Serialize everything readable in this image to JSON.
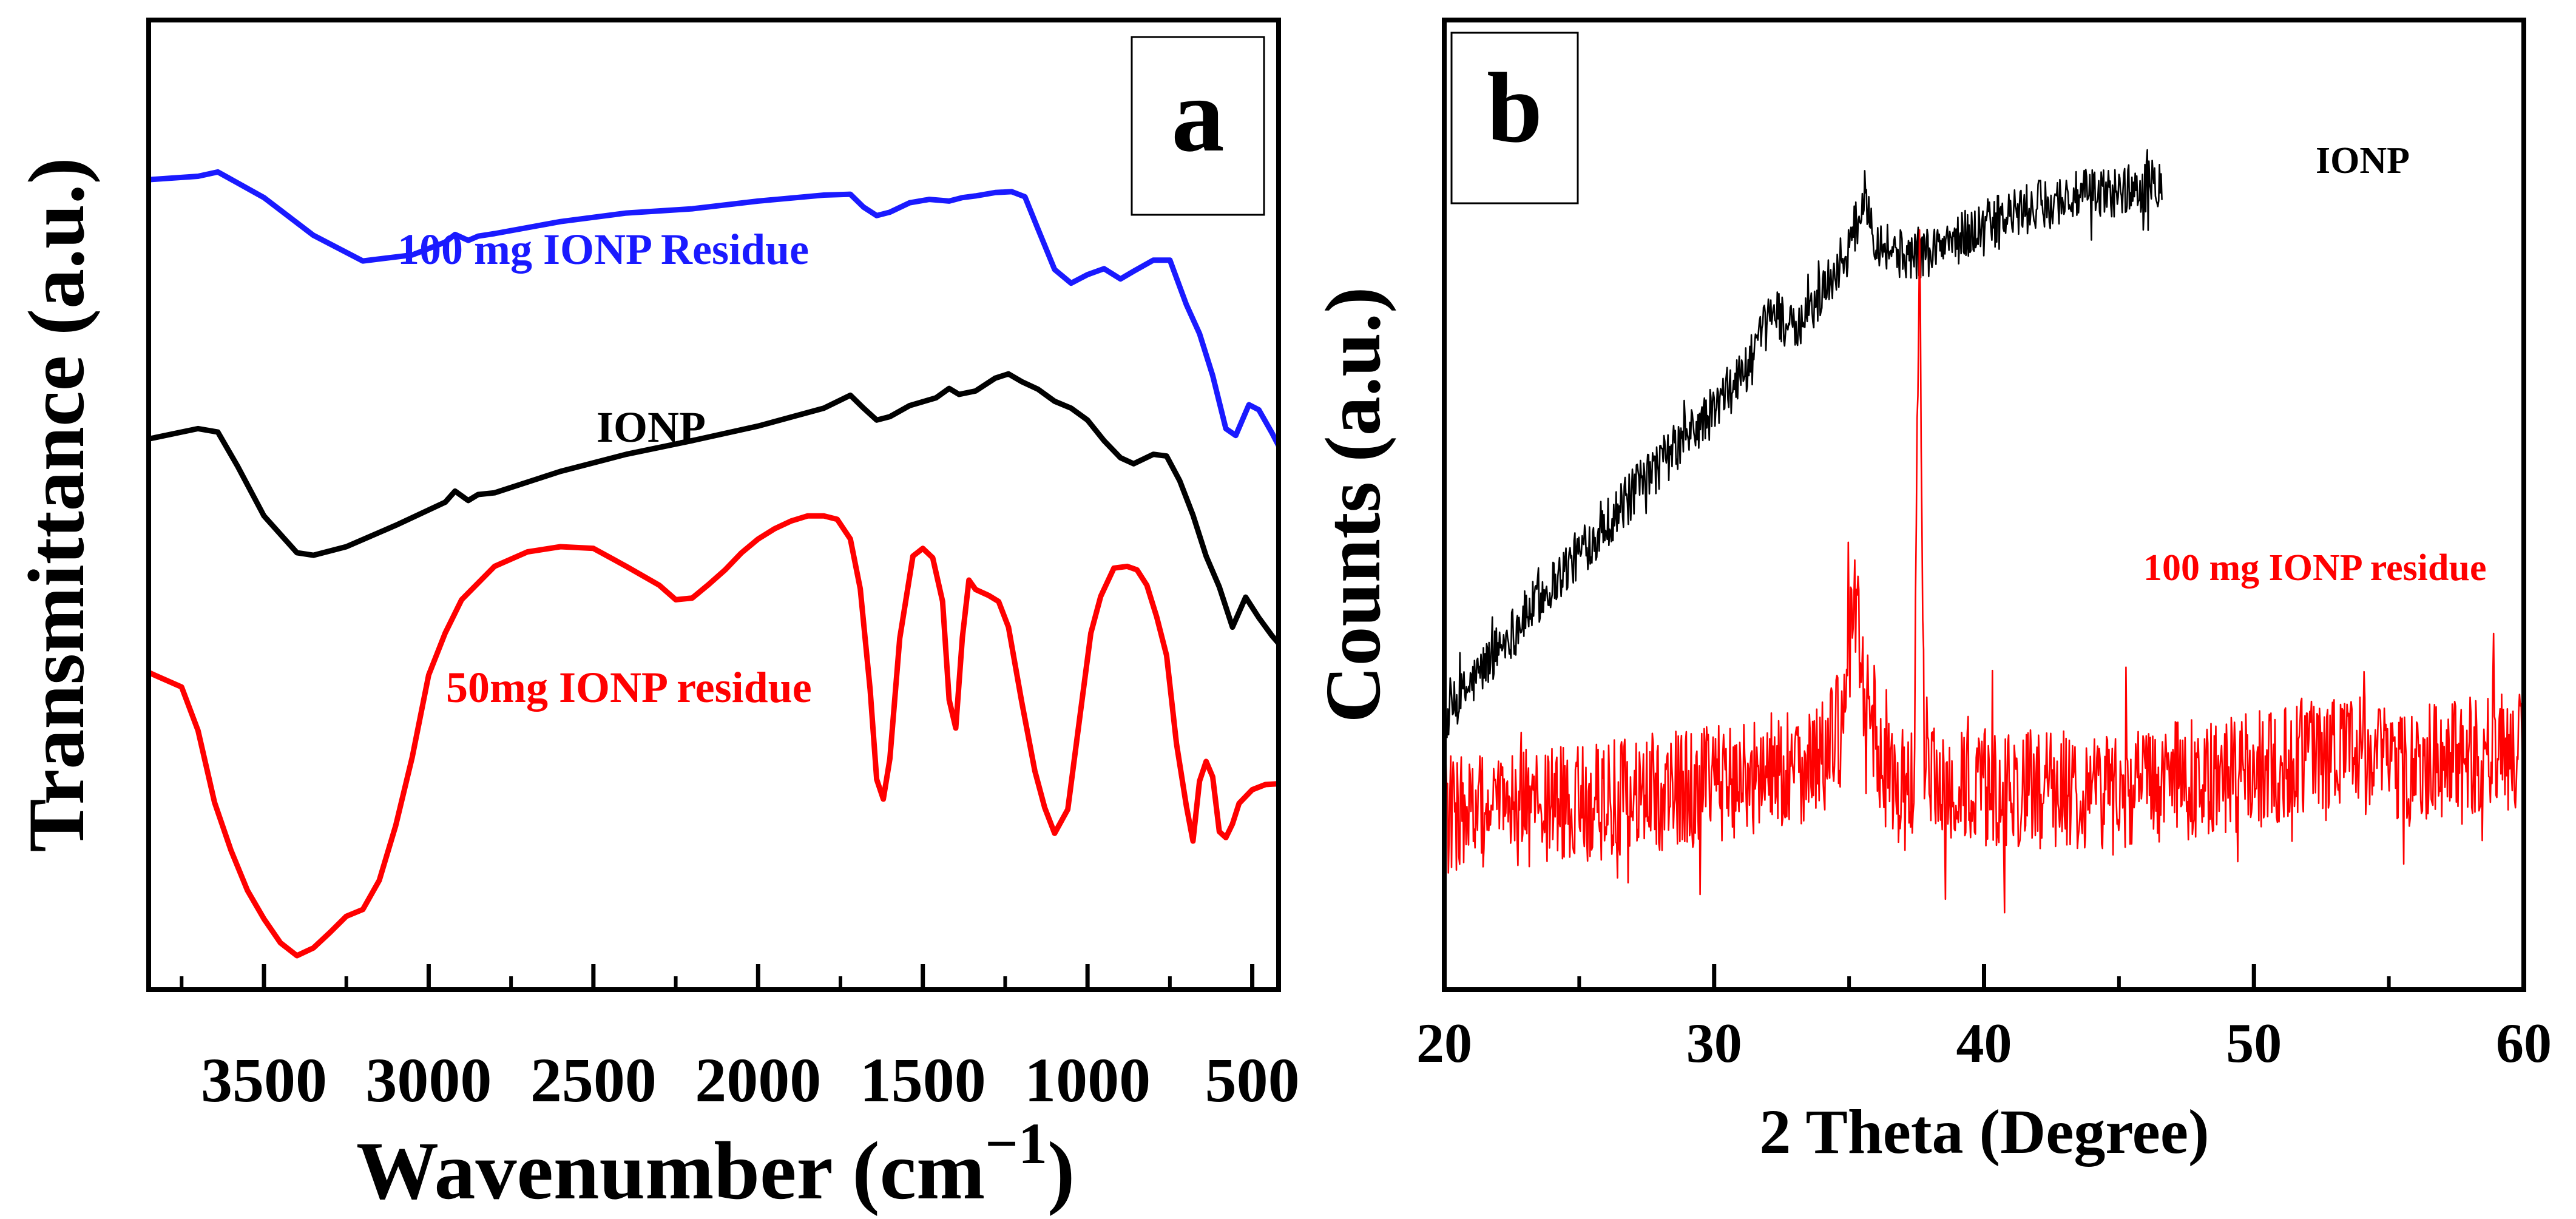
{
  "colors": {
    "blue": "#1a1aff",
    "black": "#000000",
    "red": "#ff0000"
  },
  "chart_data": [
    {
      "type": "line",
      "panel_label": "a",
      "xlabel_main": "Wavenumber (cm",
      "xlabel_sup": "−1",
      "xlabel_close": ")",
      "ylabel": "Transmittance (a.u.)",
      "xlim": [
        3850,
        420
      ],
      "xaxis_reversed": true,
      "ylim": [
        0,
        100
      ],
      "yticks_shown": false,
      "xticks": [
        3500,
        3000,
        2500,
        2000,
        1500,
        1000,
        500
      ],
      "xticklabels": [
        "3500",
        "3000",
        "2500",
        "2000",
        "1500",
        "1000",
        "500"
      ],
      "series": [
        {
          "name": "100 mg IONP Residue",
          "color": "#1a1aff",
          "x": [
            3850,
            3700,
            3640,
            3500,
            3350,
            3200,
            3050,
            2950,
            2920,
            2880,
            2850,
            2800,
            2600,
            2400,
            2200,
            2000,
            1800,
            1720,
            1680,
            1640,
            1600,
            1540,
            1480,
            1420,
            1380,
            1340,
            1280,
            1230,
            1190,
            1150,
            1100,
            1050,
            1000,
            950,
            900,
            860,
            800,
            750,
            700,
            660,
            620,
            580,
            550,
            510,
            480,
            440,
            420
          ],
          "y": [
            90.7,
            91.1,
            91.6,
            88.6,
            84.2,
            81.2,
            81.9,
            83.4,
            84.3,
            83.6,
            84.1,
            84.4,
            85.8,
            86.8,
            87.3,
            88.2,
            88.9,
            89.0,
            87.5,
            86.5,
            86.9,
            88.0,
            88.4,
            88.2,
            88.6,
            88.8,
            89.2,
            89.3,
            88.7,
            84.9,
            80.2,
            78.6,
            79.6,
            80.3,
            79.1,
            80.0,
            81.3,
            81.3,
            76.1,
            72.7,
            67.8,
            61.6,
            60.8,
            64.4,
            63.8,
            61.1,
            59.6
          ]
        },
        {
          "name": "IONP",
          "color": "#000000",
          "x": [
            3850,
            3700,
            3640,
            3580,
            3500,
            3400,
            3350,
            3250,
            3100,
            2950,
            2920,
            2880,
            2850,
            2800,
            2600,
            2400,
            2200,
            2000,
            1800,
            1720,
            1680,
            1640,
            1600,
            1540,
            1460,
            1420,
            1390,
            1340,
            1280,
            1240,
            1200,
            1150,
            1100,
            1050,
            1000,
            950,
            900,
            860,
            800,
            760,
            720,
            680,
            640,
            600,
            560,
            520,
            480,
            440,
            420
          ],
          "y": [
            60.4,
            61.6,
            61.2,
            57.2,
            51.4,
            47.1,
            46.8,
            47.8,
            50.3,
            53.0,
            54.3,
            53.2,
            53.9,
            54.1,
            56.6,
            58.6,
            60.2,
            61.9,
            64.0,
            65.5,
            64.0,
            62.6,
            63.0,
            64.3,
            65.2,
            66.3,
            65.6,
            66.0,
            67.5,
            68.0,
            67.1,
            66.2,
            64.8,
            64.0,
            62.6,
            60.2,
            58.2,
            57.5,
            58.6,
            58.4,
            55.5,
            51.5,
            46.7,
            43.1,
            38.4,
            41.9,
            39.5,
            37.4,
            36.5
          ]
        },
        {
          "name": "50mg IONP residue",
          "color": "#ff0000",
          "x": [
            3850,
            3750,
            3700,
            3650,
            3600,
            3550,
            3500,
            3450,
            3400,
            3350,
            3300,
            3250,
            3200,
            3150,
            3100,
            3050,
            3000,
            2950,
            2900,
            2800,
            2700,
            2600,
            2500,
            2400,
            2300,
            2250,
            2200,
            2150,
            2100,
            2050,
            2000,
            1950,
            1900,
            1850,
            1800,
            1760,
            1720,
            1690,
            1660,
            1640,
            1620,
            1600,
            1570,
            1530,
            1500,
            1470,
            1440,
            1420,
            1400,
            1380,
            1360,
            1340,
            1300,
            1270,
            1240,
            1200,
            1160,
            1130,
            1100,
            1060,
            1020,
            990,
            960,
            920,
            880,
            850,
            820,
            790,
            760,
            730,
            700,
            680,
            660,
            640,
            620,
            600,
            580,
            560,
            540,
            500,
            460,
            420
          ],
          "y": [
            33.1,
            31.4,
            26.3,
            17.9,
            12.3,
            7.6,
            4.3,
            1.5,
            0.0,
            0.9,
            2.7,
            4.6,
            5.4,
            8.8,
            15.2,
            23.2,
            32.8,
            37.7,
            41.6,
            45.5,
            47.2,
            47.8,
            47.6,
            45.5,
            43.3,
            41.6,
            41.8,
            43.4,
            45.1,
            47.1,
            48.7,
            49.9,
            50.8,
            51.4,
            51.4,
            51.0,
            48.7,
            42.9,
            31.1,
            20.6,
            18.3,
            23.0,
            37.1,
            46.7,
            47.6,
            46.5,
            41.4,
            29.9,
            26.6,
            37.2,
            43.9,
            42.8,
            42.1,
            41.4,
            38.4,
            29.7,
            21.6,
            17.3,
            14.3,
            17.1,
            28.9,
            37.7,
            42.0,
            45.3,
            45.5,
            45.1,
            43.3,
            39.6,
            35.1,
            24.8,
            17.5,
            13.4,
            20.4,
            22.7,
            20.9,
            14.5,
            13.8,
            15.4,
            17.8,
            19.4,
            20.0,
            20.1
          ]
        }
      ],
      "annotations": [
        {
          "text": "100 mg IONP Residue",
          "color": "#1a1aff",
          "series": "100 mg IONP Residue"
        },
        {
          "text": "IONP",
          "color": "#000000",
          "series": "IONP"
        },
        {
          "text": "50mg IONP residue",
          "color": "#ff0000",
          "series": "50mg IONP residue"
        }
      ]
    },
    {
      "type": "line",
      "panel_label": "b",
      "xlabel": "2 Theta (Degree)",
      "ylabel": "Counts (a.u.)",
      "xlim": [
        20,
        60
      ],
      "ylim": [
        0,
        100
      ],
      "yticks_shown": false,
      "xticks": [
        20,
        30,
        40,
        50,
        60
      ],
      "xticklabels": [
        "20",
        "30",
        "40",
        "50",
        "60"
      ],
      "series": [
        {
          "name": "IONP",
          "color": "#000000",
          "noise": 3,
          "x": [
            20.1,
            22,
            24,
            26,
            28,
            30,
            31.5,
            32.2,
            33,
            34,
            35,
            35.6,
            36,
            37,
            38,
            39,
            40,
            41,
            42,
            43,
            44,
            45,
            46,
            46.6
          ],
          "y": [
            27.9,
            36,
            43.5,
            50.5,
            57.5,
            63.7,
            70.1,
            75.9,
            72.5,
            77.6,
            82.7,
            89,
            83.8,
            81.8,
            82.4,
            83.8,
            85.3,
            86.5,
            87.6,
            88.5,
            89,
            89.4,
            89.9,
            90.7
          ]
        },
        {
          "name": "100 mg IONP residue",
          "color": "#ff0000",
          "noise": 7,
          "x": [
            20,
            25,
            30,
            34,
            34.8,
            35.2,
            35.6,
            36.2,
            37.0,
            37.4,
            37.6,
            37.8,
            38.3,
            40,
            45,
            50,
            53,
            55,
            60
          ],
          "y": [
            16.5,
            17.8,
            20,
            23,
            27,
            42,
            31,
            22,
            19.5,
            19.8,
            84.2,
            19.8,
            19.5,
            19.5,
            19.5,
            21.5,
            24.5,
            22.5,
            24
          ]
        }
      ],
      "annotations": [
        {
          "text": "IONP",
          "color": "#000000",
          "series": "IONP"
        },
        {
          "text": "100 mg IONP residue",
          "color": "#ff0000",
          "series": "100 mg IONP residue"
        }
      ]
    }
  ]
}
